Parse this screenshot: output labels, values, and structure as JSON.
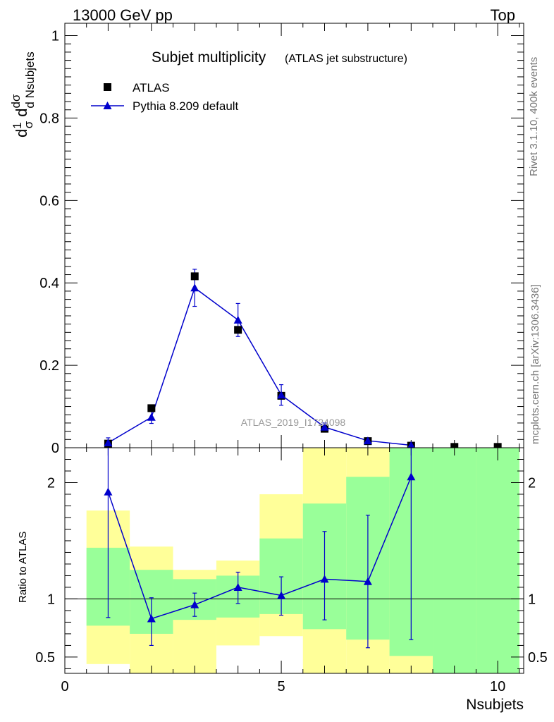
{
  "header": {
    "left": "13000 GeV pp",
    "right": "Top"
  },
  "side_labels": {
    "rivet": "Rivet 3.1.10,  400k events",
    "mcplots": "mcplots.cern.ch [arXiv:1306.3436]"
  },
  "watermark": "ATLAS_2019_I1724098",
  "colors": {
    "data": "#000000",
    "mc": "#0000cc",
    "band_inner": "#99ff99",
    "band_outer": "#ffff99"
  },
  "chart_data": [
    {
      "type": "scatter",
      "panel": "main",
      "title": "Subjet multiplicity",
      "subtitle": "(ATLAS jet substructure)",
      "ylabel": "1/σ dσ/d Nsubjets",
      "xlim": [
        0,
        10.6
      ],
      "ylim": [
        0,
        1.03
      ],
      "yticks": [
        "0",
        "0.2",
        "0.4",
        "0.6",
        "0.8",
        "1"
      ],
      "legend_position": "top-left",
      "series": [
        {
          "name": "ATLAS",
          "marker": "square",
          "x": [
            1,
            2,
            3,
            4,
            5,
            6,
            7,
            8,
            9,
            10
          ],
          "y": [
            0.01,
            0.096,
            0.416,
            0.286,
            0.126,
            0.046,
            0.016,
            0.005,
            0.002,
            0.002
          ]
        },
        {
          "name": "Pythia 8.209 default",
          "marker": "triangle",
          "line": true,
          "x": [
            1,
            2,
            3,
            4,
            5,
            6,
            7,
            8
          ],
          "y": [
            0.012,
            0.074,
            0.388,
            0.31,
            0.128,
            0.05,
            0.017,
            0.006
          ],
          "yerr_low": [
            0.004,
            0.015,
            0.045,
            0.04,
            0.025,
            0.01,
            0.006,
            0.004
          ],
          "yerr_high": [
            0.012,
            0.015,
            0.045,
            0.04,
            0.025,
            0.01,
            0.006,
            0.004
          ]
        }
      ]
    },
    {
      "type": "line",
      "panel": "ratio",
      "xlabel": "Nsubjets",
      "ylabel": "Ratio to ATLAS",
      "xlim": [
        0,
        10.6
      ],
      "ylim": [
        0.36,
        2.3
      ],
      "xticks": [
        "0",
        "5",
        "10"
      ],
      "yticks": [
        "0.5",
        "1",
        "2"
      ],
      "reference_line": 1,
      "bands": {
        "x_edges": [
          0.5,
          1.5,
          2.5,
          3.5,
          4.5,
          5.5,
          6.5,
          7.5,
          8.5,
          9.5,
          10.5
        ],
        "outer_low": [
          0.44,
          0.3,
          0.3,
          0.6,
          0.68,
          0.1,
          0.1,
          0.1,
          0.1,
          0.1
        ],
        "outer_high": [
          1.76,
          1.45,
          1.25,
          1.33,
          1.9,
          2.5,
          2.5,
          2.5,
          2.5,
          2.5
        ],
        "inner_low": [
          0.77,
          0.7,
          0.82,
          0.84,
          0.87,
          0.74,
          0.65,
          0.51,
          0.3,
          0.3
        ],
        "inner_high": [
          1.44,
          1.25,
          1.17,
          1.2,
          1.52,
          1.82,
          2.05,
          2.5,
          2.5,
          2.5
        ]
      },
      "series": [
        {
          "name": "Pythia 8.209 default",
          "x": [
            1,
            2,
            3,
            4,
            5,
            6,
            7,
            8
          ],
          "y": [
            1.92,
            0.83,
            0.95,
            1.1,
            1.03,
            1.17,
            1.15,
            2.05
          ],
          "yerr_low": [
            1.08,
            0.23,
            0.1,
            0.14,
            0.17,
            0.35,
            0.57,
            1.4
          ],
          "yerr_high": [
            1.4,
            0.18,
            0.1,
            0.13,
            0.16,
            0.41,
            0.57,
            1.4
          ]
        }
      ]
    }
  ]
}
